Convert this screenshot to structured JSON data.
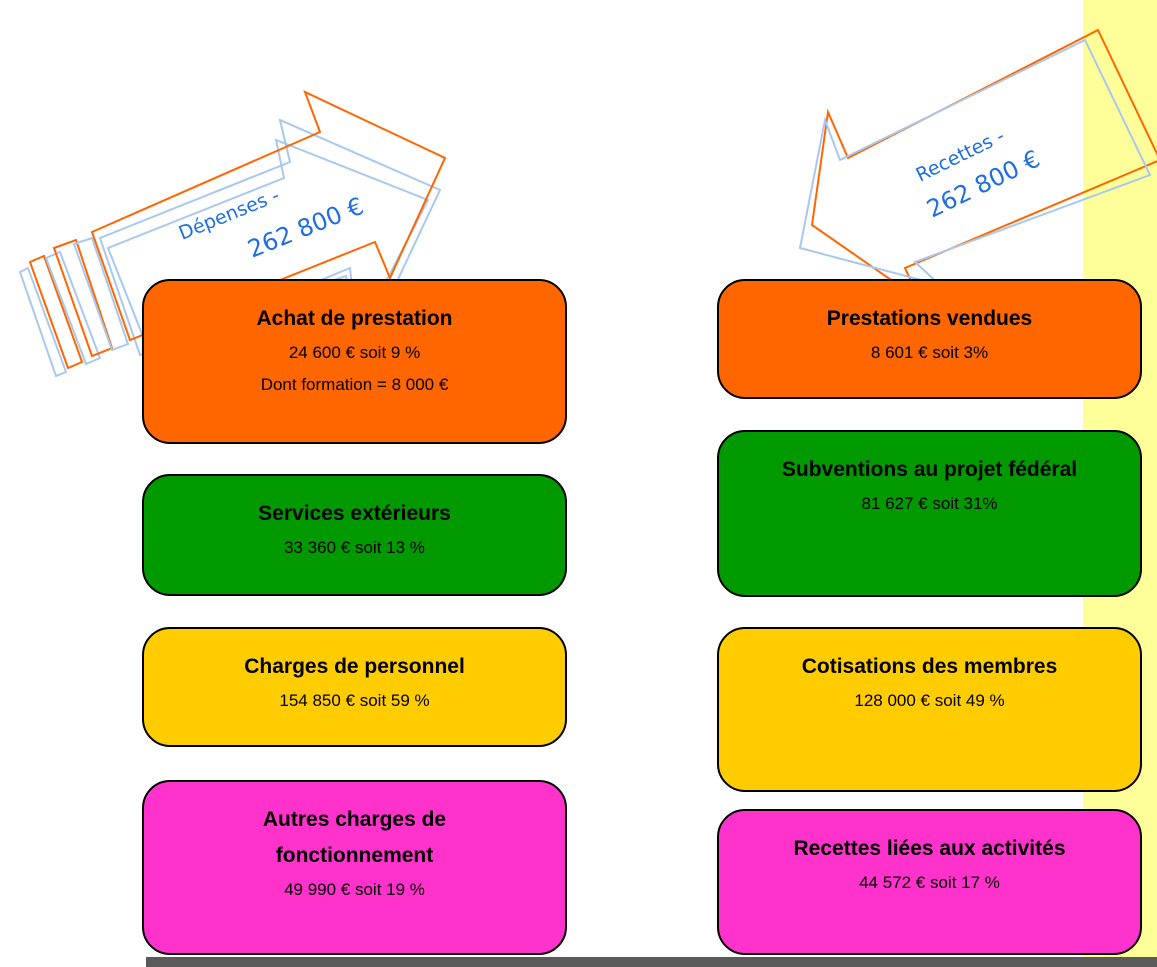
{
  "colors": {
    "orange": "#ff6600",
    "green": "#009900",
    "yellow": "#ffcc00",
    "pink": "#ff33cc",
    "arrow_text": "#1f6fe0",
    "arrow_outline_orange": "#ff6600",
    "arrow_outline_blue": "#a8c8f0",
    "side_strip": "#ffff99"
  },
  "depenses": {
    "arrow_label_1": "Dépenses -",
    "arrow_label_2": "262 800 €",
    "boxes": [
      {
        "title": "Achat de prestation",
        "lines": [
          "24 600 € soit 9 %",
          "Dont formation = 8 000 €"
        ],
        "color": "orange"
      },
      {
        "title": "Services extérieurs",
        "lines": [
          "33 360 € soit 13 %"
        ],
        "color": "green"
      },
      {
        "title": "Charges de personnel",
        "lines": [
          "154 850 € soit 59 %"
        ],
        "color": "yellow"
      },
      {
        "title_lines": [
          "Autres charges de",
          "fonctionnement"
        ],
        "lines": [
          "49 990 € soit 19 %"
        ],
        "color": "pink"
      }
    ]
  },
  "recettes": {
    "arrow_label_1": "Recettes -",
    "arrow_label_2": "262 800 €",
    "boxes": [
      {
        "title": "Prestations vendues",
        "lines": [
          "8 601 € soit 3%"
        ],
        "color": "orange"
      },
      {
        "title": "Subventions au projet fédéral",
        "lines": [
          "81 627 € soit 31%"
        ],
        "color": "green"
      },
      {
        "title": "Cotisations des membres",
        "lines": [
          "128 000 € soit 49 %"
        ],
        "color": "yellow"
      },
      {
        "title": "Recettes liées aux activités",
        "lines": [
          "44 572 € soit 17 %"
        ],
        "color": "pink"
      }
    ]
  }
}
